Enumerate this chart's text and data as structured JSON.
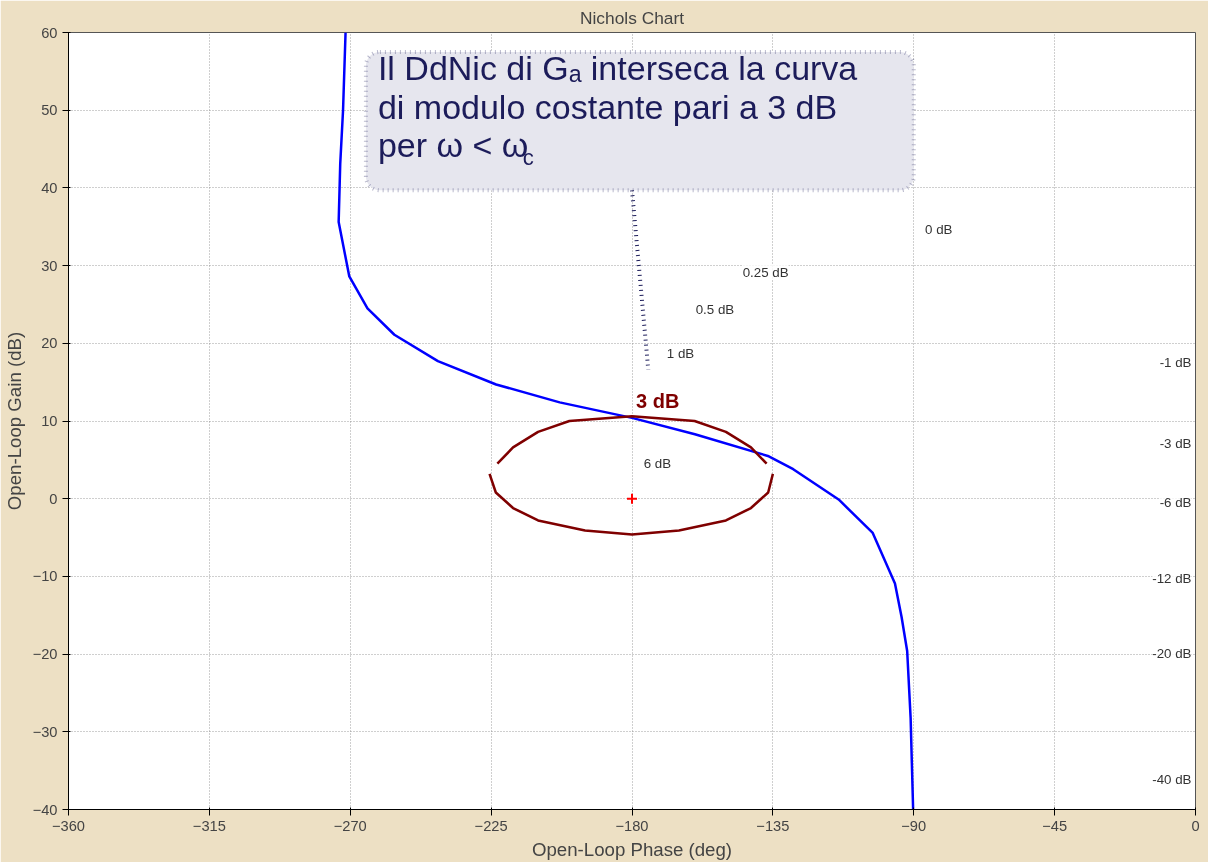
{
  "chart_data": {
    "type": "line",
    "title": "Nichols Chart",
    "xlabel": "Open-Loop Phase (deg)",
    "ylabel": "Open-Loop Gain (dB)",
    "xlim": [
      -360,
      0
    ],
    "xticks": [
      -360,
      -315,
      -270,
      -225,
      -180,
      -135,
      -90,
      -45,
      0
    ],
    "ylim": [
      -40,
      60
    ],
    "yticks": [
      -40,
      -30,
      -20,
      -10,
      0,
      10,
      20,
      30,
      40,
      50,
      60
    ],
    "grid": true,
    "line_style": "solid",
    "series": [
      {
        "color": "#0000ff",
        "x": [
          -271.5,
          -272.3,
          -273.2,
          -273.7,
          -270.3,
          -264.5,
          -255.9,
          -242,
          -223.4,
          -203.1,
          -180,
          -159.9,
          -136.6,
          -128.5,
          -114,
          -103.1,
          -96,
          -93.9,
          -92.1,
          -91,
          -90.2
        ],
        "values": [
          60,
          50,
          43.1,
          35.6,
          28.6,
          24.5,
          21.1,
          17.7,
          14.7,
          12.4,
          10.4,
          8.3,
          5.5,
          3.8,
          -0.1,
          -4.4,
          -10.9,
          -15.2,
          -19.6,
          -28.2,
          -40
        ]
      },
      {
        "name": "3 dB",
        "color": "#7f0000",
        "x": [
          -223,
          -218,
          -210,
          -200,
          -180,
          -160,
          -150,
          -142,
          -137
        ],
        "values": [
          4.5,
          6.6,
          8.6,
          10.0,
          10.6,
          10.0,
          8.6,
          6.6,
          4.5
        ]
      },
      {
        "color": "#7f0000",
        "x": [
          -225.5,
          -223.5,
          -218,
          -210,
          -195,
          -180,
          -165,
          -150,
          -142,
          -136.5,
          -135
        ],
        "values": [
          3.2,
          0.8,
          -1.2,
          -2.8,
          -4.1,
          -4.6,
          -4.1,
          -2.8,
          -1.2,
          0.8,
          3.2
        ]
      },
      {
        "type": "scatter",
        "marker": "cross",
        "color": "#ff0000",
        "x": [
          -180
        ],
        "values": [
          0
        ]
      }
    ],
    "annotations": [
      "Il DdNic di Gₐ interseca la curva di modulo costante pari a 3 dB per ω < ω$_{c}$",
      "0 dB",
      "0.25 dB",
      "0.5 dB",
      "1 dB",
      "6 dB",
      "-1 dB",
      "-3 dB",
      "-6 dB",
      "-12 dB",
      "-20 dB",
      "-40 dB"
    ]
  }
}
